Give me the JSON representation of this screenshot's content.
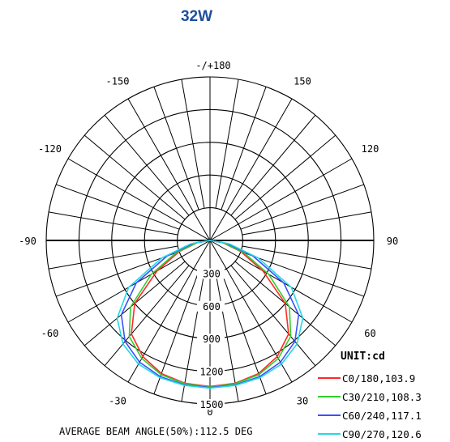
{
  "page": {
    "title": "32W"
  },
  "chart_data": {
    "type": "polar",
    "title": "32W",
    "unit_label": "UNIT:cd",
    "footer": "AVERAGE BEAM ANGLE(50%):112.5 DEG",
    "angle_ticks": [
      "-/+180",
      "150",
      "120",
      "90",
      "60",
      "30",
      "0",
      "-30",
      "-60",
      "-90",
      "-120",
      "-150"
    ],
    "radial_ticks": [
      300,
      600,
      900,
      1200,
      1500
    ],
    "radial_max": 1500,
    "grid": true,
    "legend_position": "bottom-right",
    "series": [
      {
        "name": "C0/180,103.9",
        "color": "#ff2a2a",
        "angles": [
          0,
          10,
          20,
          30,
          40,
          50,
          60,
          70,
          80,
          90
        ],
        "values": [
          1340,
          1330,
          1300,
          1230,
          1120,
          900,
          560,
          300,
          120,
          0
        ]
      },
      {
        "name": "C30/210,108.3",
        "color": "#2fcf2f",
        "angles": [
          0,
          10,
          20,
          30,
          40,
          50,
          60,
          70,
          80,
          90
        ],
        "values": [
          1345,
          1335,
          1310,
          1250,
          1150,
          950,
          620,
          330,
          130,
          0
        ]
      },
      {
        "name": "C60/240,117.1",
        "color": "#3a50ff",
        "angles": [
          0,
          10,
          20,
          30,
          40,
          50,
          60,
          70,
          80,
          90
        ],
        "values": [
          1350,
          1345,
          1330,
          1290,
          1210,
          1060,
          780,
          420,
          160,
          0
        ]
      },
      {
        "name": "C90/270,120.6",
        "color": "#22d8e8",
        "angles": [
          0,
          10,
          20,
          30,
          40,
          50,
          60,
          70,
          80,
          90
        ],
        "values": [
          1355,
          1350,
          1340,
          1310,
          1240,
          1110,
          860,
          470,
          180,
          0
        ]
      }
    ]
  }
}
